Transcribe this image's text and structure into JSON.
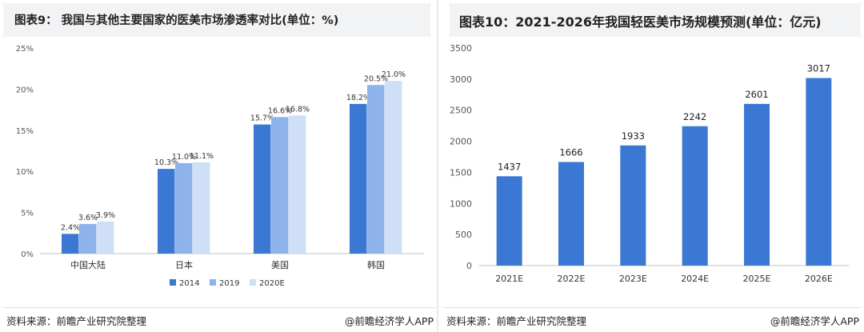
{
  "left_panel": {
    "title": "图表9： 我国与其他主要国家的医美市场渗透率对比(单位：%)",
    "source": "资料来源：前瞻产业研究院整理",
    "brand": "@前瞻经济学人APP"
  },
  "right_panel": {
    "title": "图表10：2021-2026年我国轻医美市场规模预测(单位：亿元)",
    "source": "资料来源：前瞻产业研究院整理",
    "brand": "@前瞻经济学人APP"
  },
  "chart_data": [
    {
      "type": "bar",
      "title": "图表9： 我国与其他主要国家的医美市场渗透率对比(单位：%)",
      "categories": [
        "中国大陆",
        "日本",
        "美国",
        "韩国"
      ],
      "series": [
        {
          "name": "2014",
          "values": [
            2.4,
            10.3,
            15.7,
            18.2
          ],
          "labels": [
            "2.4%",
            "10.3%",
            "15.7%",
            "18.2%"
          ],
          "color": "#3a78d4"
        },
        {
          "name": "2019",
          "values": [
            3.6,
            11.0,
            16.6,
            20.5
          ],
          "labels": [
            "3.6%",
            "11.0%",
            "16.6%",
            "20.5%"
          ],
          "color": "#8db3ea"
        },
        {
          "name": "2020E",
          "values": [
            3.9,
            11.1,
            16.8,
            21.0
          ],
          "labels": [
            "3.9%",
            "11.1%",
            "16.8%",
            "21.0%"
          ],
          "color": "#cfe0f6"
        }
      ],
      "yticks": [
        "0%",
        "5%",
        "10%",
        "15%",
        "20%",
        "25%"
      ],
      "ylim": [
        0,
        25
      ],
      "legend": "bottom",
      "grid": false
    },
    {
      "type": "bar",
      "title": "图表10：2021-2026年我国轻医美市场规模预测(单位：亿元)",
      "categories": [
        "2021E",
        "2022E",
        "2023E",
        "2024E",
        "2025E",
        "2026E"
      ],
      "values": [
        1437,
        1666,
        1933,
        2242,
        2601,
        3017
      ],
      "color": "#3a78d4",
      "yticks": [
        "0",
        "500",
        "1000",
        "1500",
        "2000",
        "2500",
        "3000",
        "3500"
      ],
      "ylim": [
        0,
        3500
      ],
      "legend": "none",
      "grid": false
    }
  ]
}
